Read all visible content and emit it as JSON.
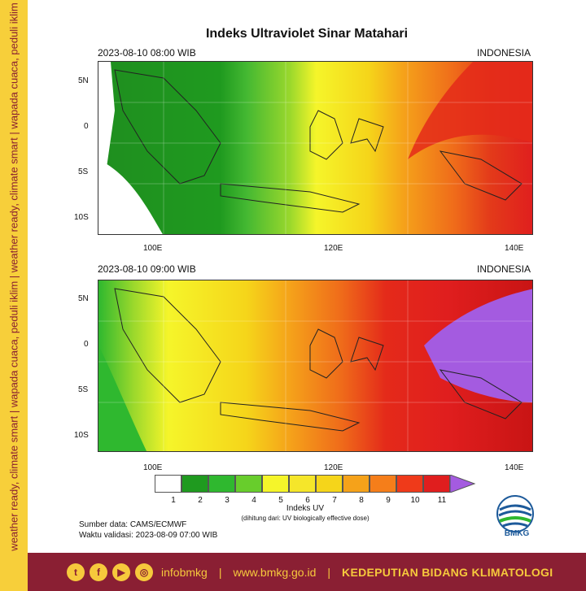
{
  "sidebar": {
    "slogan": "weather ready, climate smart | wapada cuaca, peduli iklim | weather ready, climate smart | wapada cuaca, peduli iklim"
  },
  "title": "Indeks Ultraviolet Sinar Matahari",
  "panels": [
    {
      "time": "2023-08-10  08:00 WIB",
      "region": "INDONESIA"
    },
    {
      "time": "2023-08-10  09:00 WIB",
      "region": "INDONESIA"
    }
  ],
  "axes": {
    "lat_ticks": [
      "5N",
      "0",
      "5S",
      "10S"
    ],
    "lon_ticks": [
      "100E",
      "120E",
      "140E"
    ]
  },
  "legend": {
    "title": "Indeks UV",
    "subtitle": "(dihitung dari: UV biologically effective dose)",
    "levels": [
      "1",
      "2",
      "3",
      "4",
      "5",
      "6",
      "7",
      "8",
      "9",
      "10",
      "11"
    ],
    "colors": [
      "#ffffff",
      "#1f9a1f",
      "#2fb82f",
      "#68cd2c",
      "#f5f52a",
      "#f5e62a",
      "#f5d51a",
      "#f5a21a",
      "#f57e1a",
      "#ef3a1a",
      "#e01e1e",
      "#c81414",
      "#a45be0"
    ]
  },
  "source": {
    "data": "Sumber data: CAMS/ECMWF",
    "validity": "Waktu validasi: 2023-08-09 07:00 WIB"
  },
  "logo": {
    "text": "BMKG",
    "icon": "bmkg-logo-icon"
  },
  "footer": {
    "handle": "infobmkg",
    "website": "www.bmkg.go.id",
    "org": "KEDEPUTIAN BIDANG KLIMATOLOGI",
    "social_icons": [
      "twitter-icon",
      "facebook-icon",
      "youtube-icon",
      "instagram-icon"
    ]
  }
}
